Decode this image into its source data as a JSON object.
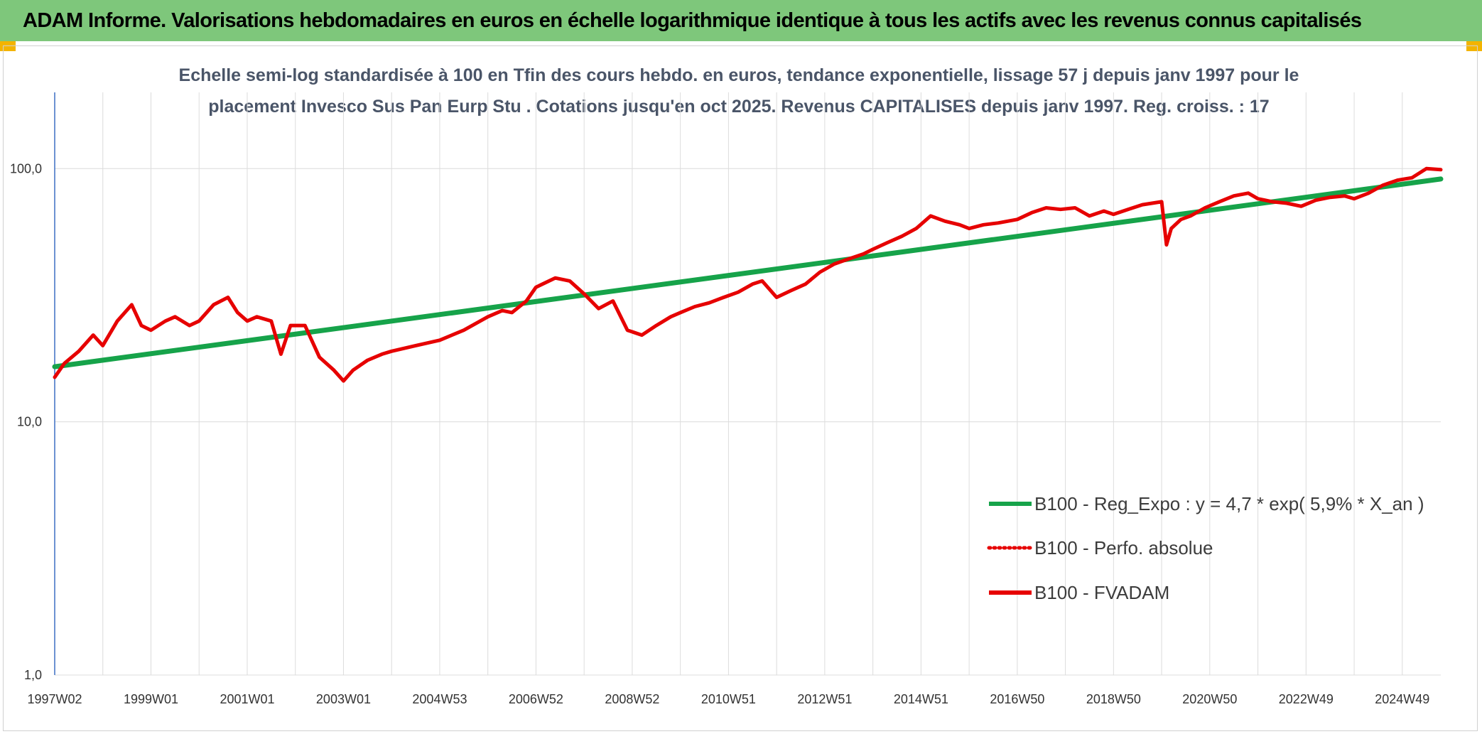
{
  "page_title": "ADAM Informe. Valorisations hebdomadaires en euros en échelle logarithmique identique à tous les actifs avec les revenus connus capitalisés",
  "colors": {
    "title_bg": "#7ec77b",
    "corner_accent": "#f3b400",
    "trend_line": "#16a34a",
    "fvadam_line": "#e60000",
    "perfo_line": "#e60000",
    "y_axis_line": "#3b6fc4",
    "grid": "#dcdcdc"
  },
  "chart_data": {
    "type": "line",
    "title_lines": [
      "Echelle semi-log standardisée à 100 en Tfin des cours hebdo. en euros, tendance exponentielle, lissage 57 j depuis janv 1997 pour le",
      "placement Invesco Sus Pan Eurp Stu . Cotations jusqu'en oct 2025. Revenus CAPITALISES depuis janv 1997. Reg. croiss. : 17"
    ],
    "y_scale": "log",
    "ylim": [
      1,
      200
    ],
    "xlim": [
      1997.0,
      2025.8
    ],
    "grid": "vertical",
    "legend_position": "right-middle",
    "y_ticks": [
      {
        "value": 1,
        "label": "1,0"
      },
      {
        "value": 10,
        "label": "10,0"
      },
      {
        "value": 100,
        "label": "100,0"
      }
    ],
    "x_ticks": [
      {
        "value": 1997.0,
        "label": "1997W02"
      },
      {
        "value": 1999.0,
        "label": "1999W01"
      },
      {
        "value": 2001.0,
        "label": "2001W01"
      },
      {
        "value": 2003.0,
        "label": "2003W01"
      },
      {
        "value": 2005.0,
        "label": "2004W53"
      },
      {
        "value": 2007.0,
        "label": "2006W52"
      },
      {
        "value": 2009.0,
        "label": "2008W52"
      },
      {
        "value": 2011.0,
        "label": "2010W51"
      },
      {
        "value": 2013.0,
        "label": "2012W51"
      },
      {
        "value": 2015.0,
        "label": "2014W51"
      },
      {
        "value": 2017.0,
        "label": "2016W50"
      },
      {
        "value": 2019.0,
        "label": "2018W50"
      },
      {
        "value": 2021.0,
        "label": "2020W50"
      },
      {
        "value": 2023.0,
        "label": "2022W49"
      },
      {
        "value": 2025.0,
        "label": "2024W49"
      }
    ],
    "x_grid": [
      1997.0,
      1998.0,
      1999.0,
      2000.0,
      2001.0,
      2002.0,
      2003.0,
      2004.0,
      2005.0,
      2006.0,
      2007.0,
      2008.0,
      2009.0,
      2010.0,
      2011.0,
      2012.0,
      2013.0,
      2014.0,
      2015.0,
      2016.0,
      2017.0,
      2018.0,
      2019.0,
      2020.0,
      2021.0,
      2022.0,
      2023.0,
      2024.0,
      2025.0
    ],
    "series": [
      {
        "name": "B100 - Reg_Expo : y = 4,7 * exp( 5,9% *  X_an )",
        "style": "solid-thick",
        "x": [
          1997.0,
          2025.8
        ],
        "y": [
          16.5,
          91
        ]
      },
      {
        "name": "B100 - Perfo. absolue",
        "style": "dotted",
        "x": [],
        "y": []
      },
      {
        "name": "B100 - FVADAM",
        "style": "solid",
        "x": [
          1997.0,
          1997.2,
          1997.5,
          1997.8,
          1998.0,
          1998.3,
          1998.6,
          1998.8,
          1999.0,
          1999.3,
          1999.5,
          1999.8,
          2000.0,
          2000.3,
          2000.6,
          2000.8,
          2001.0,
          2001.2,
          2001.5,
          2001.7,
          2001.9,
          2002.2,
          2002.5,
          2002.8,
          2003.0,
          2003.2,
          2003.5,
          2003.8,
          2004.0,
          2004.5,
          2005.0,
          2005.5,
          2006.0,
          2006.3,
          2006.5,
          2006.8,
          2007.0,
          2007.4,
          2007.7,
          2008.0,
          2008.3,
          2008.6,
          2008.9,
          2009.2,
          2009.5,
          2009.8,
          2010.0,
          2010.3,
          2010.6,
          2010.9,
          2011.2,
          2011.5,
          2011.7,
          2012.0,
          2012.3,
          2012.6,
          2012.9,
          2013.2,
          2013.5,
          2013.8,
          2014.0,
          2014.3,
          2014.6,
          2014.9,
          2015.2,
          2015.5,
          2015.8,
          2016.0,
          2016.3,
          2016.6,
          2017.0,
          2017.3,
          2017.6,
          2017.9,
          2018.2,
          2018.5,
          2018.8,
          2019.0,
          2019.3,
          2019.6,
          2020.0,
          2020.1,
          2020.2,
          2020.4,
          2020.6,
          2020.9,
          2021.2,
          2021.5,
          2021.8,
          2022.0,
          2022.3,
          2022.6,
          2022.9,
          2023.2,
          2023.5,
          2023.8,
          2024.0,
          2024.3,
          2024.6,
          2024.9,
          2025.2,
          2025.5,
          2025.8
        ],
        "y": [
          15,
          17,
          19,
          22,
          20,
          25,
          29,
          24,
          23,
          25,
          26,
          24,
          25,
          29,
          31,
          27,
          25,
          26,
          25,
          18.5,
          24,
          24,
          18,
          16,
          14.5,
          16,
          17.5,
          18.5,
          19,
          20,
          21,
          23,
          26,
          27.5,
          27,
          30,
          34,
          37,
          36,
          32,
          28,
          30,
          23,
          22,
          24,
          26,
          27,
          28.5,
          29.5,
          31,
          32.5,
          35,
          36,
          31,
          33,
          35,
          39,
          42,
          44,
          46,
          48,
          51,
          54,
          58,
          65,
          62,
          60,
          58,
          60,
          61,
          63,
          67,
          70,
          69,
          70,
          65,
          68,
          66,
          69,
          72,
          74,
          50,
          58,
          63,
          65,
          70,
          74,
          78,
          80,
          76,
          74,
          73,
          71,
          75,
          77,
          78,
          76,
          80,
          86,
          90,
          92,
          100,
          99
        ]
      }
    ]
  }
}
